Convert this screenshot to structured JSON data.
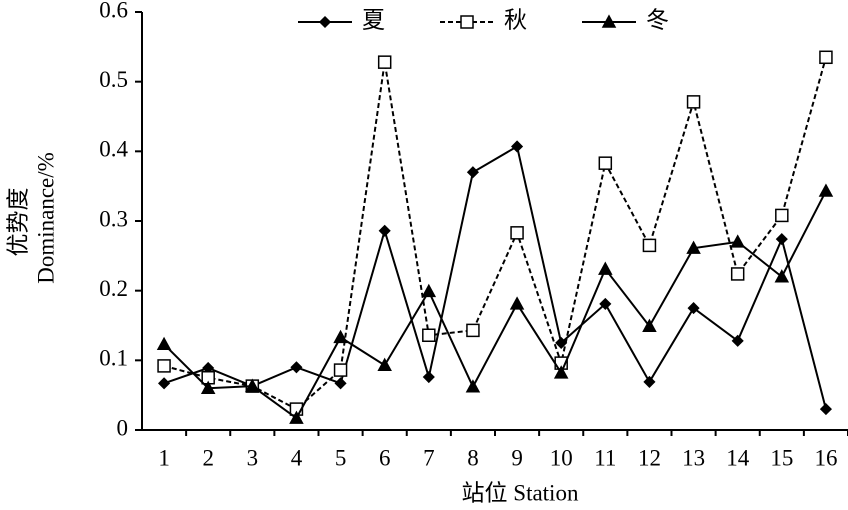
{
  "chart_data": {
    "type": "line",
    "x_label": "站位 Station",
    "y_label": [
      "优势度",
      "Dominance/%"
    ],
    "categories": [
      "1",
      "2",
      "3",
      "4",
      "5",
      "6",
      "7",
      "8",
      "9",
      "10",
      "11",
      "12",
      "13",
      "14",
      "15",
      "16"
    ],
    "series": [
      {
        "name": "夏",
        "color": "#000000",
        "marker": "diamond",
        "dashed": false,
        "values": [
          0.067,
          0.089,
          0.063,
          0.09,
          0.067,
          0.286,
          0.076,
          0.37,
          0.407,
          0.125,
          0.181,
          0.069,
          0.175,
          0.128,
          0.274,
          0.03
        ]
      },
      {
        "name": "秋",
        "color": "#000000",
        "marker": "square",
        "dashed": true,
        "values": [
          0.092,
          0.075,
          0.063,
          0.03,
          0.086,
          0.528,
          0.136,
          0.143,
          0.283,
          0.096,
          0.383,
          0.265,
          0.471,
          0.224,
          0.308,
          0.535
        ]
      },
      {
        "name": "冬",
        "color": "#000000",
        "marker": "triangle",
        "dashed": false,
        "values": [
          0.123,
          0.06,
          0.063,
          0.017,
          0.133,
          0.093,
          0.199,
          0.062,
          0.181,
          0.082,
          0.231,
          0.149,
          0.261,
          0.27,
          0.22,
          0.343
        ]
      }
    ],
    "ylim": [
      0,
      0.6
    ],
    "yticks": [
      0,
      0.1,
      0.2,
      0.3,
      0.4,
      0.5,
      0.6
    ],
    "grid": false,
    "legend": "top"
  }
}
